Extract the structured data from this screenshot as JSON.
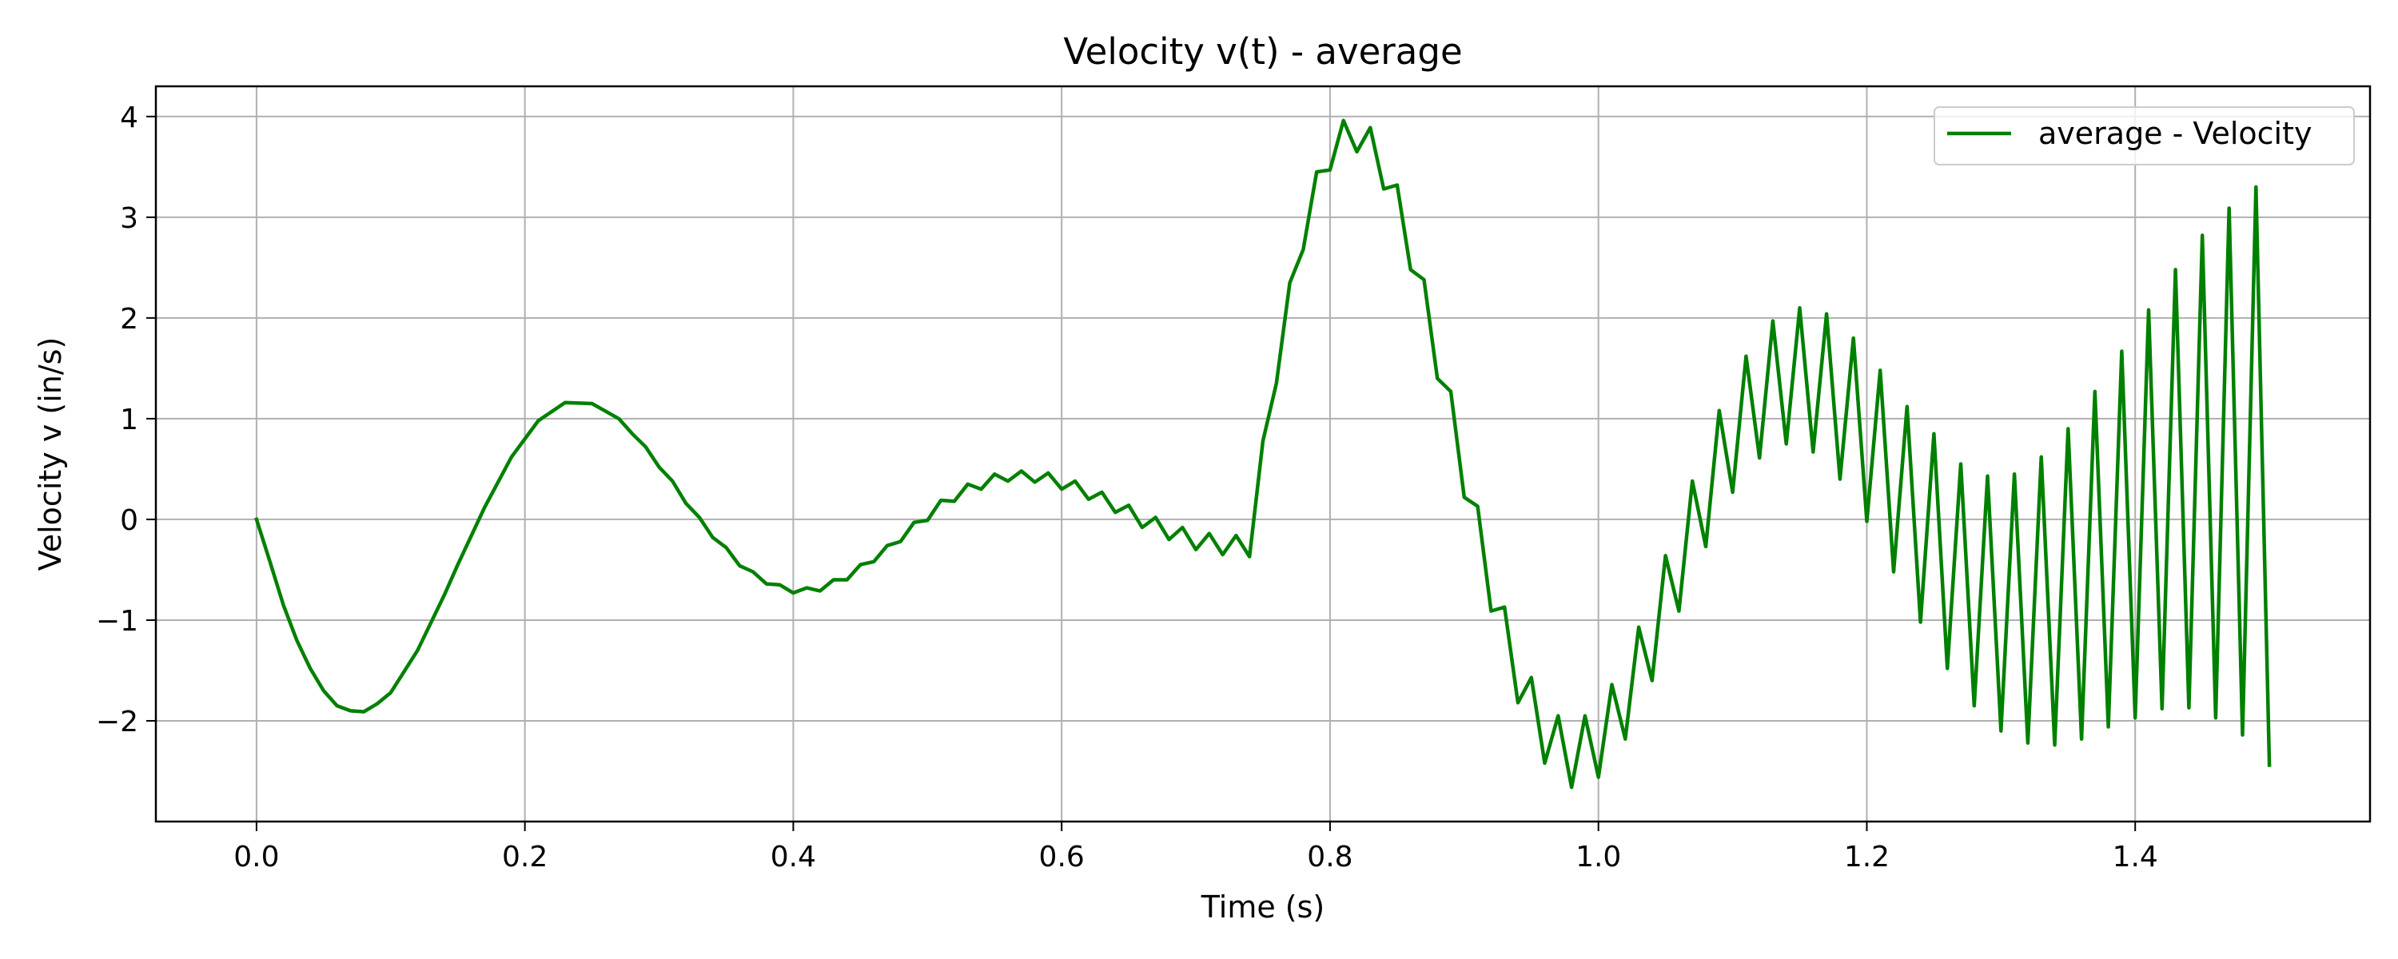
{
  "chart_data": {
    "type": "line",
    "title": "Velocity v(t) - average",
    "xlabel": "Time (s)",
    "ylabel": "Velocity v (in/s)",
    "xlim": [
      -0.075,
      1.575
    ],
    "ylim": [
      -3.0,
      4.3
    ],
    "xticks": [
      0.0,
      0.2,
      0.4,
      0.6,
      0.8,
      1.0,
      1.2,
      1.4
    ],
    "xtick_labels": [
      "0.0",
      "0.2",
      "0.4",
      "0.6",
      "0.8",
      "1.0",
      "1.2",
      "1.4"
    ],
    "yticks": [
      4,
      3,
      2,
      1,
      0,
      -1,
      -2
    ],
    "ytick_labels": [
      "4",
      "3",
      "2",
      "1",
      "0",
      "−1",
      "−2"
    ],
    "grid": true,
    "legend_position": "top-right",
    "series": [
      {
        "name": "average - Velocity",
        "color": "#008000",
        "x": [
          0.0,
          0.01,
          0.02,
          0.03,
          0.04,
          0.05,
          0.06,
          0.07,
          0.08,
          0.09,
          0.1,
          0.12,
          0.14,
          0.15,
          0.17,
          0.19,
          0.21,
          0.23,
          0.25,
          0.27,
          0.28,
          0.29,
          0.3,
          0.31,
          0.32,
          0.33,
          0.34,
          0.35,
          0.36,
          0.37,
          0.38,
          0.39,
          0.4,
          0.41,
          0.42,
          0.43,
          0.44,
          0.45,
          0.46,
          0.47,
          0.48,
          0.49,
          0.5,
          0.51,
          0.52,
          0.53,
          0.54,
          0.55,
          0.56,
          0.57,
          0.58,
          0.59,
          0.6,
          0.61,
          0.62,
          0.63,
          0.64,
          0.65,
          0.66,
          0.67,
          0.68,
          0.69,
          0.7,
          0.71,
          0.72,
          0.73,
          0.74,
          0.75,
          0.76,
          0.77,
          0.78,
          0.79,
          0.8,
          0.81,
          0.82,
          0.83,
          0.84,
          0.85,
          0.86,
          0.87,
          0.88,
          0.89,
          0.9,
          0.91,
          0.92,
          0.93,
          0.94,
          0.95,
          0.96,
          0.97,
          0.98,
          0.99,
          1.0,
          1.01,
          1.02,
          1.03,
          1.04,
          1.05,
          1.06,
          1.07,
          1.08,
          1.09,
          1.1,
          1.11,
          1.12,
          1.13,
          1.14,
          1.15,
          1.16,
          1.17,
          1.18,
          1.19,
          1.2,
          1.21,
          1.22,
          1.23,
          1.24,
          1.25,
          1.26,
          1.27,
          1.28,
          1.29,
          1.3,
          1.31,
          1.32,
          1.33,
          1.34,
          1.35,
          1.36,
          1.37,
          1.38,
          1.39,
          1.4,
          1.41,
          1.42,
          1.43,
          1.44,
          1.45,
          1.46,
          1.47,
          1.48,
          1.49,
          1.5
        ],
        "values": [
          0.0,
          -0.42,
          -0.85,
          -1.2,
          -1.48,
          -1.7,
          -1.85,
          -1.9,
          -1.91,
          -1.83,
          -1.72,
          -1.3,
          -0.75,
          -0.45,
          0.12,
          0.62,
          0.98,
          1.16,
          1.15,
          1.0,
          0.85,
          0.72,
          0.52,
          0.38,
          0.16,
          0.02,
          -0.18,
          -0.28,
          -0.46,
          -0.52,
          -0.64,
          -0.65,
          -0.73,
          -0.68,
          -0.71,
          -0.6,
          -0.6,
          -0.45,
          -0.42,
          -0.26,
          -0.22,
          -0.03,
          -0.01,
          0.19,
          0.18,
          0.35,
          0.3,
          0.45,
          0.38,
          0.48,
          0.37,
          0.46,
          0.3,
          0.38,
          0.2,
          0.27,
          0.07,
          0.14,
          -0.08,
          0.02,
          -0.2,
          -0.08,
          -0.3,
          -0.14,
          -0.35,
          -0.16,
          -0.37,
          0.78,
          1.35,
          2.35,
          2.68,
          3.45,
          3.47,
          3.96,
          3.65,
          3.89,
          3.28,
          3.32,
          2.48,
          2.38,
          1.4,
          1.27,
          0.22,
          0.13,
          -0.91,
          -0.87,
          -1.82,
          -1.57,
          -2.42,
          -1.95,
          -2.66,
          -1.95,
          -2.56,
          -1.64,
          -2.18,
          -1.07,
          -1.6,
          -0.36,
          -0.91,
          0.38,
          -0.27,
          1.08,
          0.27,
          1.62,
          0.61,
          1.97,
          0.75,
          2.1,
          0.67,
          2.04,
          0.4,
          1.8,
          -0.02,
          1.48,
          -0.52,
          1.12,
          -1.02,
          0.85,
          -1.48,
          0.55,
          -1.85,
          0.43,
          -2.1,
          0.45,
          -2.22,
          0.62,
          -2.24,
          0.9,
          -2.18,
          1.27,
          -2.06,
          1.67,
          -1.97,
          2.08,
          -1.88,
          2.48,
          -1.87,
          2.82,
          -1.97,
          3.09,
          -2.14,
          3.3,
          -2.44
        ]
      }
    ]
  }
}
